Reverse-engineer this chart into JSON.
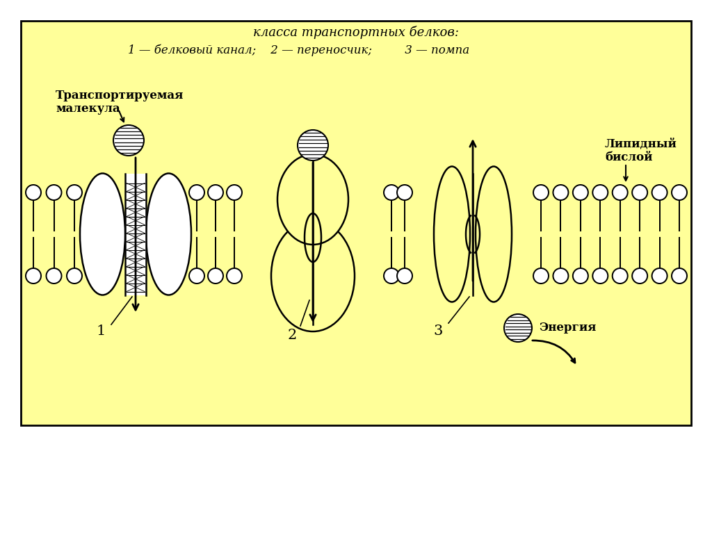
{
  "bg_color": "#ffffff",
  "panel_color": "#ffff99",
  "line_color": "#000000",
  "title_line1": "класса транспортных белков:",
  "title_line2": "1 — белковый канал;    2 — переносчик;         3 — помпа",
  "label_transported": "Транспортируемая\nмалекула",
  "label_lipid": "Липидный\nбислой",
  "label_energy": "Энергия",
  "label1": "1",
  "label2": "2",
  "label3": "3"
}
